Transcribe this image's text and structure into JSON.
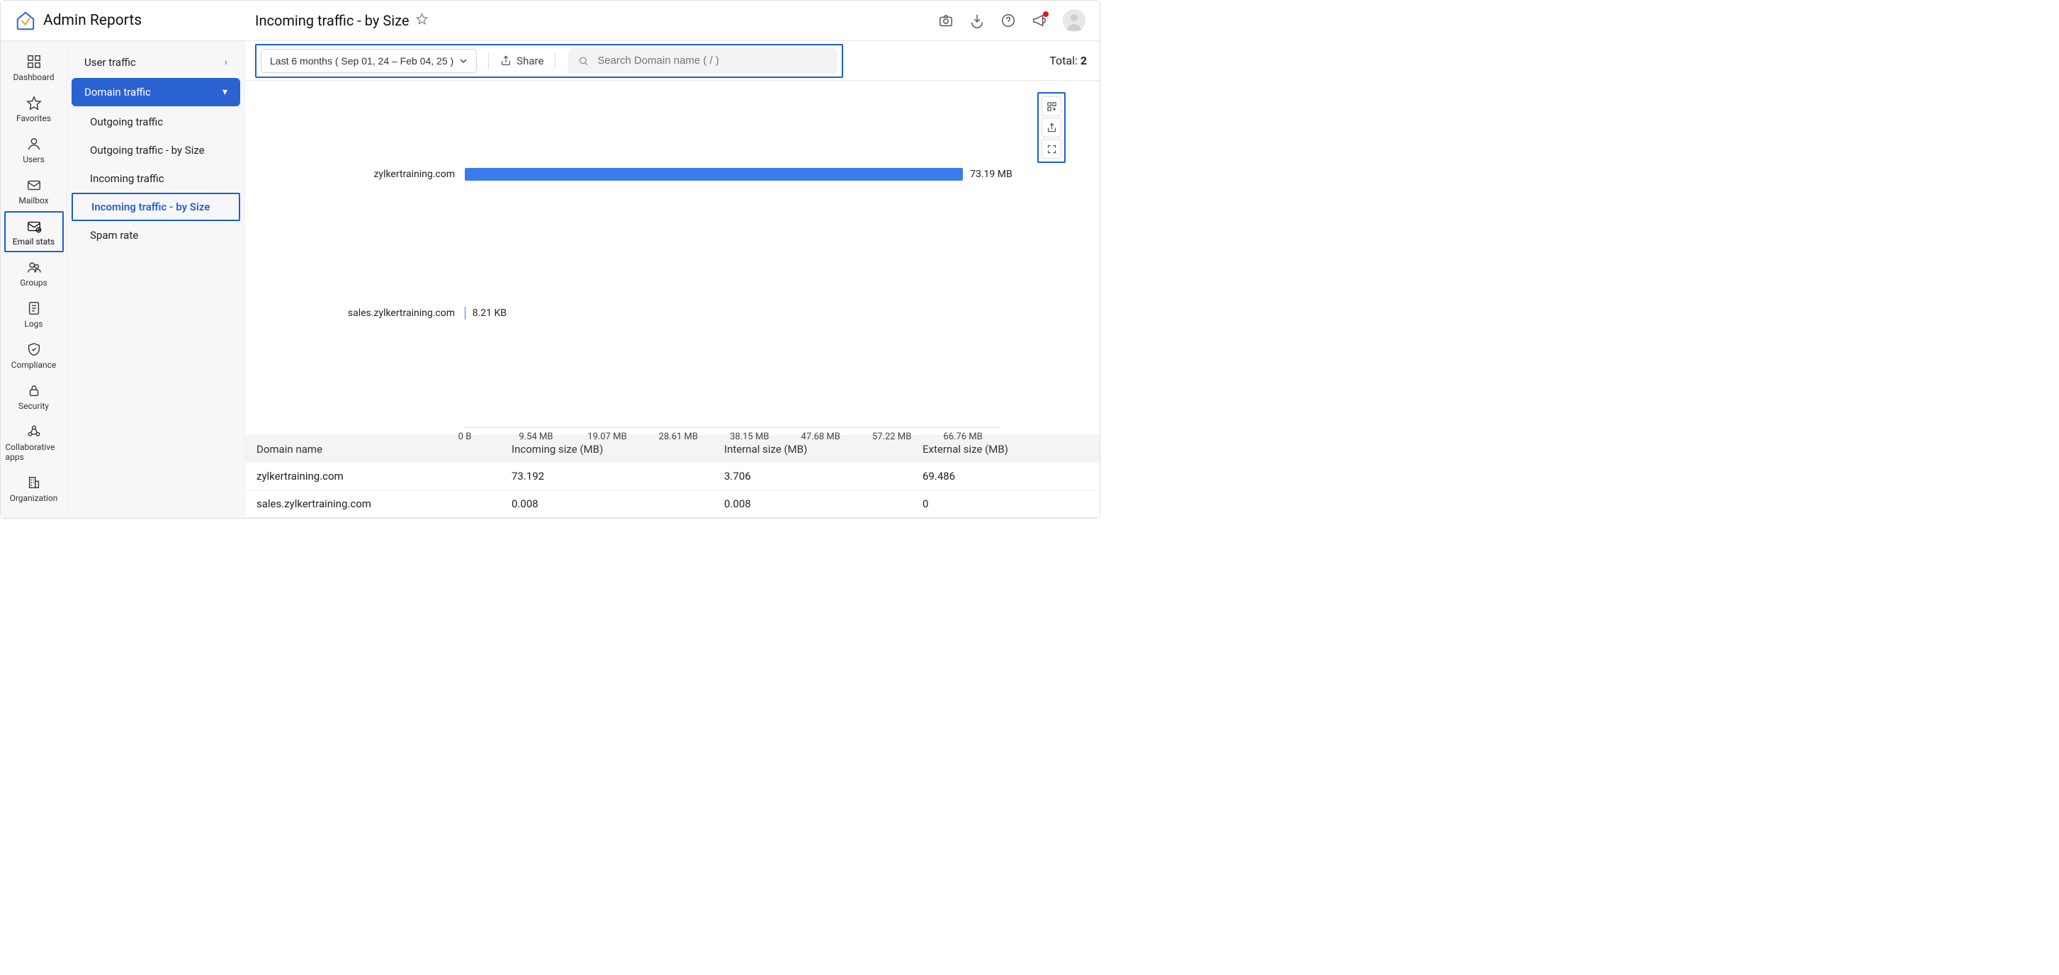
{
  "app": {
    "title": "Admin Reports"
  },
  "page": {
    "title": "Incoming traffic - by Size"
  },
  "toolbar": {
    "date_range": "Last 6 months ( Sep 01, 24 – Feb 04, 25 )",
    "share_label": "Share",
    "search_placeholder": "Search Domain name ( / )",
    "total_label": "Total:",
    "total_value": "2"
  },
  "rail": {
    "items": [
      {
        "key": "dashboard",
        "label": "Dashboard"
      },
      {
        "key": "favorites",
        "label": "Favorites"
      },
      {
        "key": "users",
        "label": "Users"
      },
      {
        "key": "mailbox",
        "label": "Mailbox"
      },
      {
        "key": "emailstats",
        "label": "Email stats",
        "active": true
      },
      {
        "key": "groups",
        "label": "Groups"
      },
      {
        "key": "logs",
        "label": "Logs"
      },
      {
        "key": "compliance",
        "label": "Compliance"
      },
      {
        "key": "security",
        "label": "Security"
      },
      {
        "key": "collabapps",
        "label": "Collaborative apps"
      },
      {
        "key": "organization",
        "label": "Organization"
      }
    ]
  },
  "subnav": {
    "items": [
      {
        "label": "User traffic",
        "hasChildren": true
      },
      {
        "label": "Domain traffic",
        "hasChildren": true,
        "selected": true
      }
    ],
    "domain_children": [
      {
        "label": "Outgoing traffic"
      },
      {
        "label": "Outgoing traffic - by Size"
      },
      {
        "label": "Incoming traffic"
      },
      {
        "label": "Incoming traffic - by Size",
        "active": true
      },
      {
        "label": "Spam rate"
      }
    ]
  },
  "chart": {
    "type": "bar",
    "bar_color": "#3a7cf0",
    "background_color": "#ffffff",
    "max_value_mb": 73.192,
    "bars": [
      {
        "label": "zylkertraining.com",
        "value_mb": 73.192,
        "display": "73.19 MB"
      },
      {
        "label": "sales.zylkertraining.com",
        "value_mb": 0.008,
        "display": "8.21 KB"
      }
    ],
    "x_ticks": [
      "0 B",
      "9.54 MB",
      "19.07 MB",
      "28.61 MB",
      "38.15 MB",
      "47.68 MB",
      "57.22 MB",
      "66.76 MB"
    ]
  },
  "table": {
    "columns": [
      "Domain name",
      "Incoming size (MB)",
      "Internal size (MB)",
      "External size (MB)"
    ],
    "rows": [
      [
        "zylkertraining.com",
        "73.192",
        "3.706",
        "69.486"
      ],
      [
        "sales.zylkertraining.com",
        "0.008",
        "0.008",
        "0"
      ]
    ]
  }
}
